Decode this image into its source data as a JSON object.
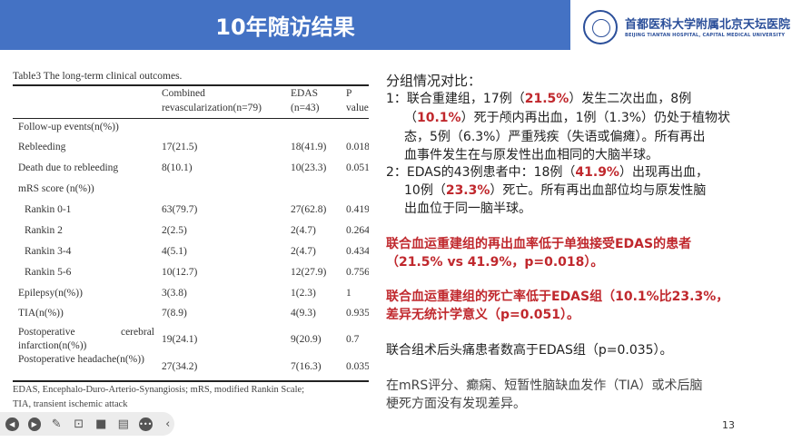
{
  "header": {
    "title": "10年随访结果"
  },
  "logo": {
    "name_cn": "首都医科大学附属北京天坛医院",
    "name_en": "BEIJING TIANTAN HOSPITAL, CAPITAL MEDICAL UNIVERSITY"
  },
  "table": {
    "title": "Table3 The long-term clinical outcomes.",
    "headers": [
      [
        "",
        ""
      ],
      [
        "Combined",
        "revascularization(n=79)"
      ],
      [
        "EDAS",
        "(n=43)"
      ],
      [
        "P",
        "value"
      ]
    ],
    "rows": [
      {
        "label": "Follow-up events(n(%))",
        "combined": "",
        "edas": "",
        "p": ""
      },
      {
        "label": "Rebleeding",
        "combined": "17(21.5)",
        "edas": "18(41.9)",
        "p": "0.018"
      },
      {
        "label": "Death due to rebleeding",
        "combined": "8(10.1)",
        "edas": "10(23.3)",
        "p": "0.051"
      },
      {
        "label": "mRS score (n(%))",
        "combined": "",
        "edas": "",
        "p": ""
      },
      {
        "label": "Rankin 0-1",
        "combined": "63(79.7)",
        "edas": "27(62.8)",
        "p": "0.419"
      },
      {
        "label": "Rankin 2",
        "combined": "2(2.5)",
        "edas": "2(4.7)",
        "p": "0.264"
      },
      {
        "label": "Rankin 3-4",
        "combined": "4(5.1)",
        "edas": "2(4.7)",
        "p": "0.434"
      },
      {
        "label": "Rankin 5-6",
        "combined": "10(12.7)",
        "edas": "12(27.9)",
        "p": "0.756"
      },
      {
        "label": "Epilepsy(n(%))",
        "combined": "3(3.8)",
        "edas": "1(2.3)",
        "p": "1"
      },
      {
        "label": "TIA(n(%))",
        "combined": "7(8.9)",
        "edas": "4(9.3)",
        "p": "0.935"
      },
      {
        "label": "Postoperative cerebral infarction(n(%))",
        "combined": "19(24.1)",
        "edas": "9(20.9)",
        "p": "0.7"
      },
      {
        "label": "Postoperative headache(n(%))",
        "combined": "27(34.2)",
        "edas": "7(16.3)",
        "p": "0.035"
      }
    ],
    "footnote": [
      "EDAS, Encephalo-Duro-Arterio-Synangiosis; mRS, modified Rankin Scale;",
      "TIA, transient ischemic attack"
    ]
  },
  "right": {
    "lines": [
      [
        {
          "t": "分组情况对比："
        }
      ],
      [
        {
          "t": "1：联合重建组，17例（"
        },
        {
          "t": "21.5%",
          "red": true
        },
        {
          "t": "）发生二次出血，8例"
        }
      ],
      [
        {
          "t": "（"
        },
        {
          "t": "10.1%",
          "red": true
        },
        {
          "t": "）死于颅内再出血，1例（1.3%）仍处于植物状"
        }
      ],
      [
        {
          "t": "态，5例（6.3%）严重残疾（失语或偏瘫）。所有再出"
        }
      ],
      [
        {
          "t": "血事件发生在与原发性出血相同的大脑半球。"
        }
      ],
      [
        {
          "t": "2：EDAS的43例患者中：18例（"
        },
        {
          "t": "41.9%",
          "red": true
        },
        {
          "t": "）出现再出血，"
        }
      ],
      [
        {
          "t": "10例（"
        },
        {
          "t": "23.3%",
          "red": true
        },
        {
          "t": "）死亡。所有再出血部位均与原发性脑"
        }
      ],
      [
        {
          "t": "出血位于同一脑半球。"
        }
      ],
      [
        {
          "t": "联合血运重建组的再出血率低于单独接受EDAS的患者",
          "red": true
        }
      ],
      [
        {
          "t": "（21.5% vs 41.9%，p=0.018）。",
          "red": true
        }
      ],
      [
        {
          "t": "联合血运重建组的死亡率低于EDAS组（10.1%比23.3%，",
          "red": true
        }
      ],
      [
        {
          "t": "差异无统计学意义（p=0.051）。",
          "red": true
        }
      ],
      [
        {
          "t": "联合组术后头痛患者数高于EDAS组（p=0.035）。"
        }
      ],
      [
        {
          "t": "在mRS评分、癫痫、短暂性脑缺血发作（TIA）或术后脑"
        }
      ],
      [
        {
          "t": "梗死方面没有发现差异。"
        }
      ]
    ]
  },
  "toolbar": {
    "icons": [
      "previous-icon",
      "next-icon",
      "pen-icon",
      "focus-icon",
      "camera-icon",
      "comment-icon",
      "more-icon",
      "collapse-icon"
    ]
  },
  "page_number": "13",
  "colors": {
    "header": "#4472c4",
    "highlight": "#c0282d"
  }
}
